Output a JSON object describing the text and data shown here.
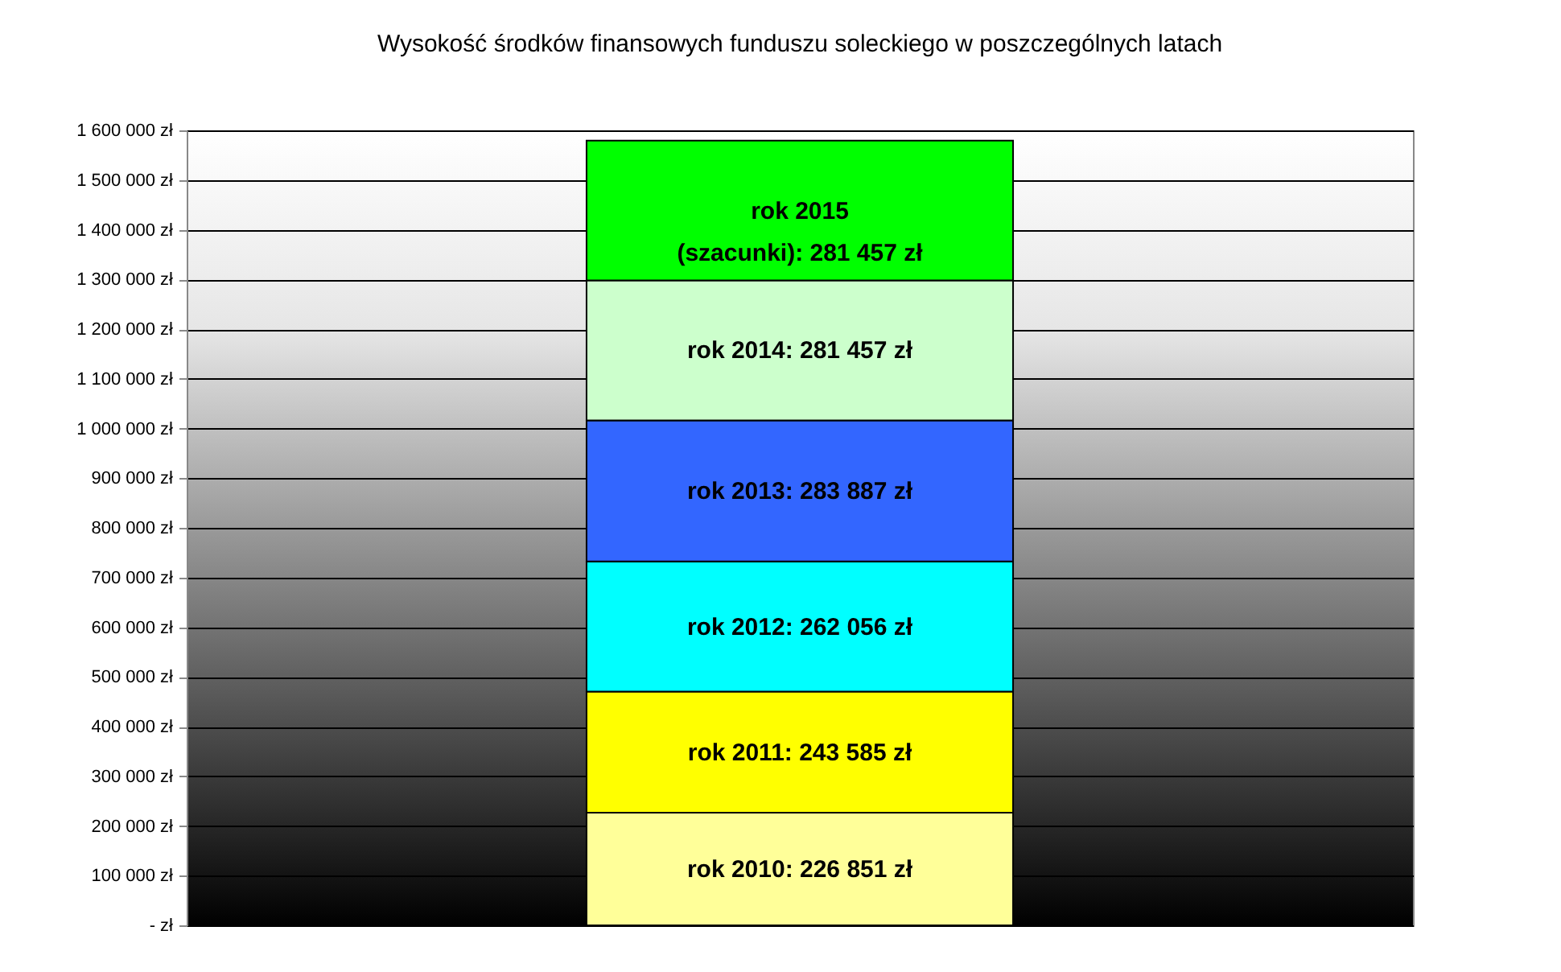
{
  "chart_data": {
    "type": "bar",
    "title": "Wysokość środków finansowych funduszu soleckiego w poszczególnych latach",
    "categories": [
      null
    ],
    "stacked": true,
    "ylim": [
      0,
      1600000
    ],
    "yticks": [
      {
        "value": 0,
        "label": "- zł"
      },
      {
        "value": 100000,
        "label": "100 000 zł"
      },
      {
        "value": 200000,
        "label": "200 000 zł"
      },
      {
        "value": 300000,
        "label": "300 000 zł"
      },
      {
        "value": 400000,
        "label": "400 000 zł"
      },
      {
        "value": 500000,
        "label": "500 000 zł"
      },
      {
        "value": 600000,
        "label": "600 000 zł"
      },
      {
        "value": 700000,
        "label": "700 000 zł"
      },
      {
        "value": 800000,
        "label": "800 000 zł"
      },
      {
        "value": 900000,
        "label": "900 000 zł"
      },
      {
        "value": 1000000,
        "label": "1 000 000 zł"
      },
      {
        "value": 1100000,
        "label": "1 100 000 zł"
      },
      {
        "value": 1200000,
        "label": "1 200 000 zł"
      },
      {
        "value": 1300000,
        "label": "1 300 000 zł"
      },
      {
        "value": 1400000,
        "label": "1 400 000 zł"
      },
      {
        "value": 1500000,
        "label": "1 500 000 zł"
      },
      {
        "value": 1600000,
        "label": "1 600 000 zł"
      }
    ],
    "grid": "y",
    "tick_labels": "y",
    "series": [
      {
        "color": "#ffff99",
        "values": [
          226851
        ],
        "value_labels": [
          "rok 2010: 226 851 zł"
        ]
      },
      {
        "color": "#ffff00",
        "values": [
          243585
        ],
        "value_labels": [
          "rok 2011: 243 585 zł"
        ]
      },
      {
        "color": "#00ffff",
        "values": [
          262056
        ],
        "value_labels": [
          "rok 2012: 262 056 zł"
        ]
      },
      {
        "color": "#3366ff",
        "values": [
          283887
        ],
        "value_labels": [
          "rok 2013: 283 887 zł"
        ]
      },
      {
        "color": "#ccffcc",
        "values": [
          281457
        ],
        "value_labels": [
          "rok 2014: 281 457 zł"
        ]
      },
      {
        "color": "#00ff00",
        "values": [
          281457
        ],
        "value_labels": [
          "rok 2015\n(szacunki): 281 457 zł"
        ]
      }
    ]
  }
}
